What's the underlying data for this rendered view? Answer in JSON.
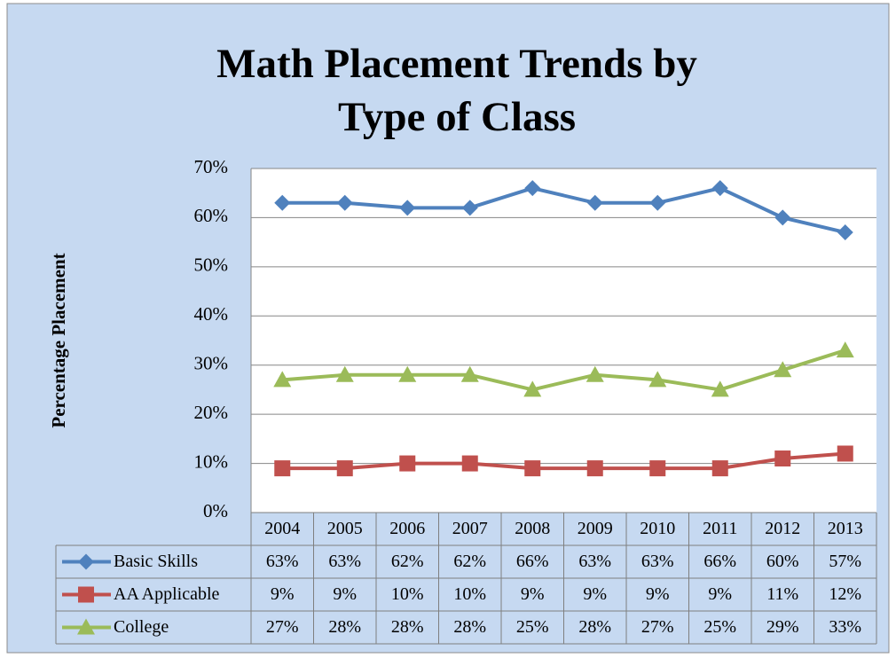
{
  "chart_data": {
    "type": "line",
    "title": "Math Placement Trends by Type of Class",
    "y_label": "Percentage Placement",
    "categories": [
      "2004",
      "2005",
      "2006",
      "2007",
      "2008",
      "2009",
      "2010",
      "2011",
      "2012",
      "2013"
    ],
    "series": [
      {
        "name": "Basic Skills",
        "color": "#4f81bd",
        "marker": "diamond",
        "values": [
          63,
          63,
          62,
          62,
          66,
          63,
          63,
          66,
          60,
          57
        ],
        "value_labels": [
          "63%",
          "63%",
          "62%",
          "62%",
          "66%",
          "63%",
          "63%",
          "66%",
          "60%",
          "57%"
        ]
      },
      {
        "name": "AA Applicable",
        "color": "#c0504d",
        "marker": "square",
        "values": [
          9,
          9,
          10,
          10,
          9,
          9,
          9,
          9,
          11,
          12
        ],
        "value_labels": [
          "9%",
          "9%",
          "10%",
          "10%",
          "9%",
          "9%",
          "9%",
          "9%",
          "11%",
          "12%"
        ]
      },
      {
        "name": "College",
        "color": "#9bbb59",
        "marker": "triangle",
        "values": [
          27,
          28,
          28,
          28,
          25,
          28,
          27,
          25,
          29,
          33
        ],
        "value_labels": [
          "27%",
          "28%",
          "28%",
          "28%",
          "25%",
          "28%",
          "27%",
          "25%",
          "29%",
          "33%"
        ]
      }
    ],
    "ylim": [
      0,
      70
    ],
    "yticks": [
      {
        "value": 0,
        "label": "0%"
      },
      {
        "value": 10,
        "label": "10%"
      },
      {
        "value": 20,
        "label": "20%"
      },
      {
        "value": 30,
        "label": "30%"
      },
      {
        "value": 40,
        "label": "40%"
      },
      {
        "value": 50,
        "label": "50%"
      },
      {
        "value": 60,
        "label": "60%"
      },
      {
        "value": 70,
        "label": "70%"
      }
    ],
    "grid": true,
    "data_table": true
  }
}
